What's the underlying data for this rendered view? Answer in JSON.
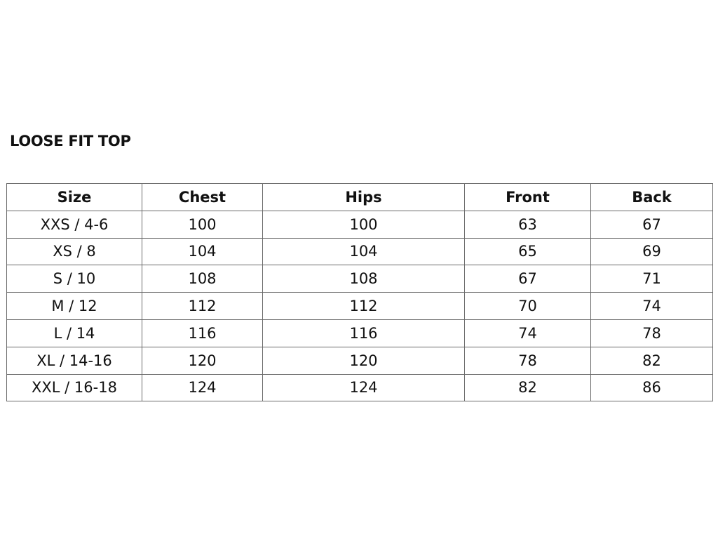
{
  "title": "LOOSE FIT TOP",
  "table": {
    "headers": [
      "Size",
      "Chest",
      "Hips",
      "Front",
      "Back"
    ],
    "rows": [
      [
        "XXS / 4-6",
        "100",
        "100",
        "63",
        "67"
      ],
      [
        "XS / 8",
        "104",
        "104",
        "65",
        "69"
      ],
      [
        "S / 10",
        "108",
        "108",
        "67",
        "71"
      ],
      [
        "M / 12",
        "112",
        "112",
        "70",
        "74"
      ],
      [
        "L / 14",
        "116",
        "116",
        "74",
        "78"
      ],
      [
        "XL / 14-16",
        "120",
        "120",
        "78",
        "82"
      ],
      [
        "XXL / 16-18",
        "124",
        "124",
        "82",
        "86"
      ]
    ]
  }
}
